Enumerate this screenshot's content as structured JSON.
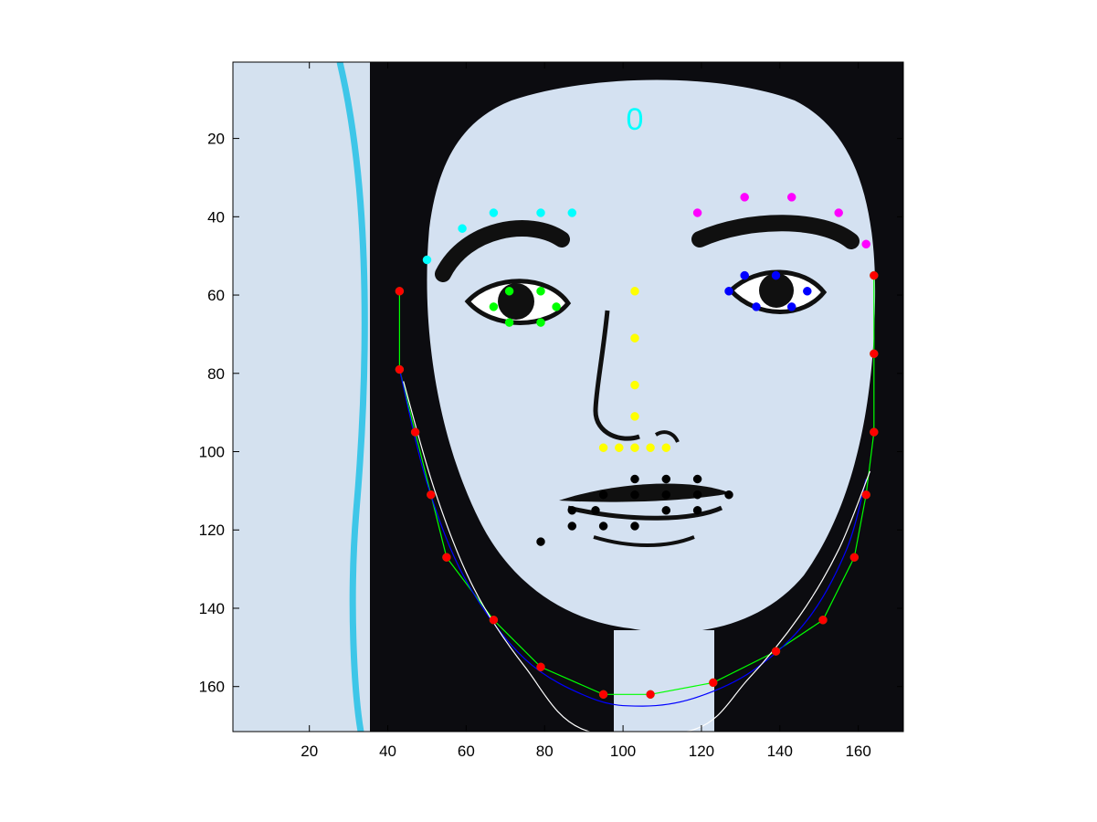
{
  "chart_data": {
    "type": "scatter",
    "title": "",
    "xlabel": "",
    "ylabel": "",
    "xlim": [
      0.5,
      171.5
    ],
    "ylim": [
      171.5,
      0.5
    ],
    "y_axis_reversed": true,
    "grid": false,
    "x_ticks": [
      20,
      40,
      60,
      80,
      100,
      120,
      140,
      160
    ],
    "y_ticks": [
      20,
      40,
      60,
      80,
      100,
      120,
      140,
      160
    ],
    "x_tick_labels": [
      "20",
      "40",
      "60",
      "80",
      "100",
      "120",
      "140",
      "160"
    ],
    "y_tick_labels": [
      "20",
      "40",
      "60",
      "80",
      "100",
      "120",
      "140",
      "160"
    ],
    "annotation": {
      "text": "0",
      "x": 103,
      "y": 15,
      "color": "#00ffff"
    },
    "background_image": "face-drawing",
    "scatter_series": [
      {
        "name": "right-eyebrow",
        "color": "#00ffff",
        "points": [
          [
            50,
            51
          ],
          [
            59,
            43
          ],
          [
            67,
            39
          ],
          [
            79,
            39
          ],
          [
            87,
            39
          ]
        ]
      },
      {
        "name": "left-eyebrow",
        "color": "#ff00ff",
        "points": [
          [
            119,
            39
          ],
          [
            131,
            35
          ],
          [
            143,
            35
          ],
          [
            155,
            39
          ],
          [
            162,
            47
          ]
        ]
      },
      {
        "name": "right-eye",
        "color": "#00ff00",
        "points": [
          [
            67,
            63
          ],
          [
            71,
            59
          ],
          [
            79,
            59
          ],
          [
            83,
            63
          ],
          [
            79,
            67
          ],
          [
            71,
            67
          ]
        ]
      },
      {
        "name": "left-eye",
        "color": "#0000ff",
        "points": [
          [
            127,
            59
          ],
          [
            131,
            55
          ],
          [
            139,
            55
          ],
          [
            147,
            59
          ],
          [
            143,
            63
          ],
          [
            134,
            63
          ]
        ]
      },
      {
        "name": "nose",
        "color": "#ffff00",
        "points": [
          [
            103,
            59
          ],
          [
            103,
            71
          ],
          [
            103,
            83
          ],
          [
            103,
            91
          ],
          [
            95,
            99
          ],
          [
            99,
            99
          ],
          [
            103,
            99
          ],
          [
            107,
            99
          ],
          [
            111,
            99
          ]
        ]
      },
      {
        "name": "mouth",
        "color": "#000000",
        "points": [
          [
            79,
            123
          ],
          [
            87,
            115
          ],
          [
            95,
            111
          ],
          [
            103,
            107
          ],
          [
            111,
            107
          ],
          [
            119,
            107
          ],
          [
            127,
            111
          ],
          [
            119,
            115
          ],
          [
            111,
            115
          ],
          [
            103,
            119
          ],
          [
            95,
            119
          ],
          [
            87,
            119
          ],
          [
            93,
            115
          ],
          [
            103,
            111
          ],
          [
            111,
            111
          ],
          [
            119,
            111
          ]
        ]
      },
      {
        "name": "jaw",
        "color": "#ff0000",
        "points": [
          [
            43,
            59
          ],
          [
            43,
            79
          ],
          [
            47,
            95
          ],
          [
            51,
            111
          ],
          [
            55,
            127
          ],
          [
            67,
            143
          ],
          [
            79,
            155
          ],
          [
            95,
            162
          ],
          [
            107,
            162
          ],
          [
            123,
            159
          ],
          [
            139,
            151
          ],
          [
            151,
            143
          ],
          [
            159,
            127
          ],
          [
            162,
            111
          ],
          [
            164,
            95
          ],
          [
            164,
            75
          ],
          [
            164,
            55
          ]
        ]
      }
    ],
    "line_series": [
      {
        "name": "jaw-polyline",
        "color": "#00ff00",
        "kind": "polyline",
        "points": [
          [
            43,
            59
          ],
          [
            43,
            79
          ],
          [
            47,
            95
          ],
          [
            51,
            111
          ],
          [
            55,
            127
          ],
          [
            67,
            143
          ],
          [
            79,
            155
          ],
          [
            95,
            162
          ],
          [
            107,
            162
          ],
          [
            123,
            159
          ],
          [
            139,
            151
          ],
          [
            151,
            143
          ],
          [
            159,
            127
          ],
          [
            162,
            111
          ],
          [
            164,
            95
          ],
          [
            164,
            75
          ],
          [
            164,
            55
          ]
        ]
      },
      {
        "name": "fit-curve-blue",
        "color": "#0000ff",
        "kind": "curve",
        "points": [
          [
            43,
            79
          ],
          [
            50,
            108
          ],
          [
            60,
            133
          ],
          [
            75,
            153
          ],
          [
            92,
            163
          ],
          [
            105,
            165
          ],
          [
            118,
            163
          ],
          [
            133,
            156
          ],
          [
            147,
            143
          ],
          [
            157,
            125
          ],
          [
            162,
            107
          ]
        ]
      },
      {
        "name": "fit-curve-white",
        "color": "#ffffff",
        "kind": "curve",
        "points": [
          [
            44,
            82
          ],
          [
            52,
            110
          ],
          [
            62,
            135
          ],
          [
            75,
            155
          ],
          [
            90,
            171
          ],
          [
            118,
            171
          ],
          [
            132,
            158
          ],
          [
            145,
            142
          ],
          [
            155,
            125
          ],
          [
            163,
            105
          ]
        ]
      }
    ]
  }
}
